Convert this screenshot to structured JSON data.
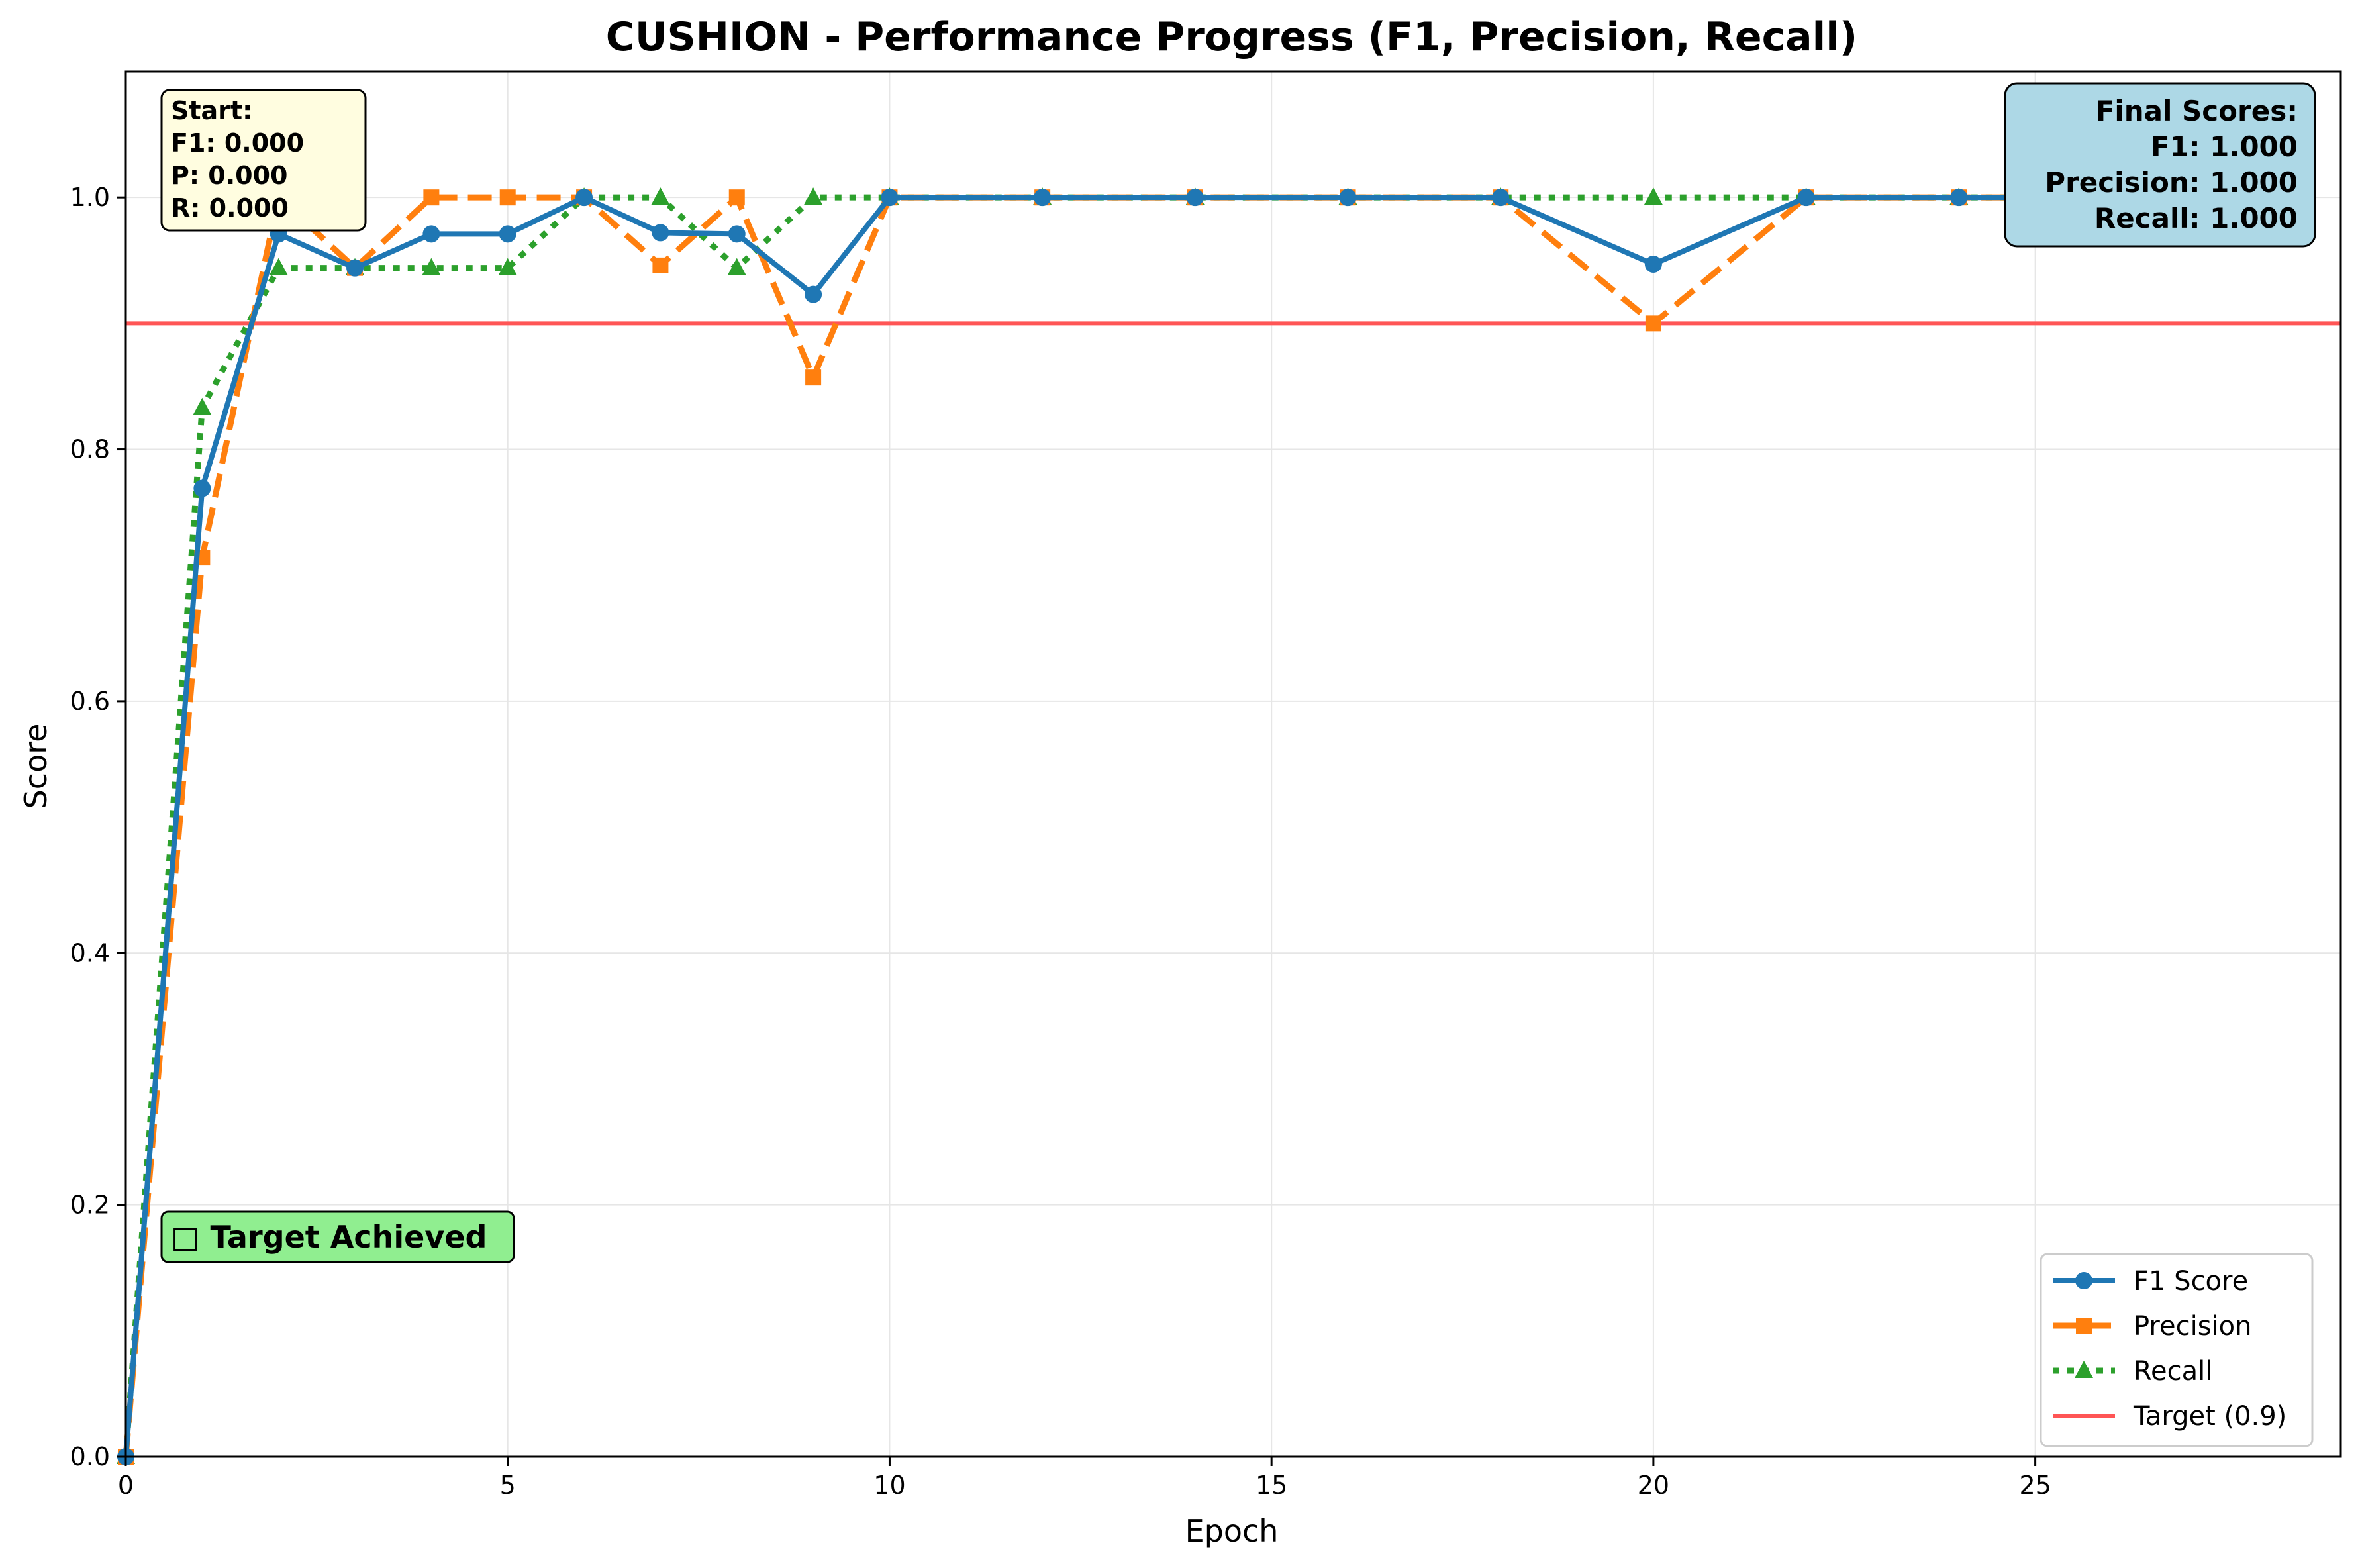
{
  "chart_data": {
    "type": "line",
    "title": "CUSHION - Performance Progress (F1, Precision, Recall)",
    "xlabel": "Epoch",
    "ylabel": "Score",
    "xlim": [
      0,
      29
    ],
    "ylim": [
      0,
      1.1
    ],
    "xticks": [
      0,
      5,
      10,
      15,
      20,
      25
    ],
    "yticks": [
      0.0,
      0.2,
      0.4,
      0.6,
      0.8,
      1.0
    ],
    "xtick_labels": [
      "0",
      "5",
      "10",
      "15",
      "20",
      "25"
    ],
    "ytick_labels": [
      "0.0",
      "0.2",
      "0.4",
      "0.6",
      "0.8",
      "1.0"
    ],
    "grid": true,
    "legend_position": "lower-right",
    "x": [
      0,
      1,
      2,
      3,
      4,
      5,
      6,
      7,
      8,
      9,
      10,
      12,
      14,
      16,
      18,
      20,
      22,
      24,
      26,
      28
    ],
    "series": [
      {
        "name": "F1 Score",
        "color": "#1f77b4",
        "marker": "circle",
        "linestyle": "solid",
        "values": [
          0.0,
          0.769,
          0.971,
          0.944,
          0.971,
          0.971,
          1.0,
          0.972,
          0.971,
          0.923,
          1.0,
          1.0,
          1.0,
          1.0,
          1.0,
          0.947,
          1.0,
          1.0,
          1.0,
          1.0
        ]
      },
      {
        "name": "Precision",
        "color": "#ff7f0e",
        "marker": "square",
        "linestyle": "dashed",
        "values": [
          0.0,
          0.714,
          1.0,
          0.944,
          1.0,
          1.0,
          1.0,
          0.946,
          1.0,
          0.857,
          1.0,
          1.0,
          1.0,
          1.0,
          1.0,
          0.9,
          1.0,
          1.0,
          1.0,
          1.0
        ]
      },
      {
        "name": "Recall",
        "color": "#2ca02c",
        "marker": "triangle",
        "linestyle": "dotted",
        "values": [
          0.0,
          0.833,
          0.944,
          0.944,
          0.944,
          0.944,
          1.0,
          1.0,
          0.944,
          1.0,
          1.0,
          1.0,
          1.0,
          1.0,
          1.0,
          1.0,
          1.0,
          1.0,
          1.0,
          1.0
        ]
      }
    ],
    "target": {
      "name": "Target (0.9)",
      "value": 0.9,
      "color": "#ff5555"
    },
    "annotations": {
      "start_lines": [
        "Start:",
        "F1: 0.000",
        "P: 0.000",
        "R: 0.000"
      ],
      "final_lines": [
        "Final Scores:",
        "F1: 1.000",
        "Precision: 1.000",
        "Recall: 1.000"
      ],
      "achieved_text": "□ Target Achieved"
    }
  }
}
